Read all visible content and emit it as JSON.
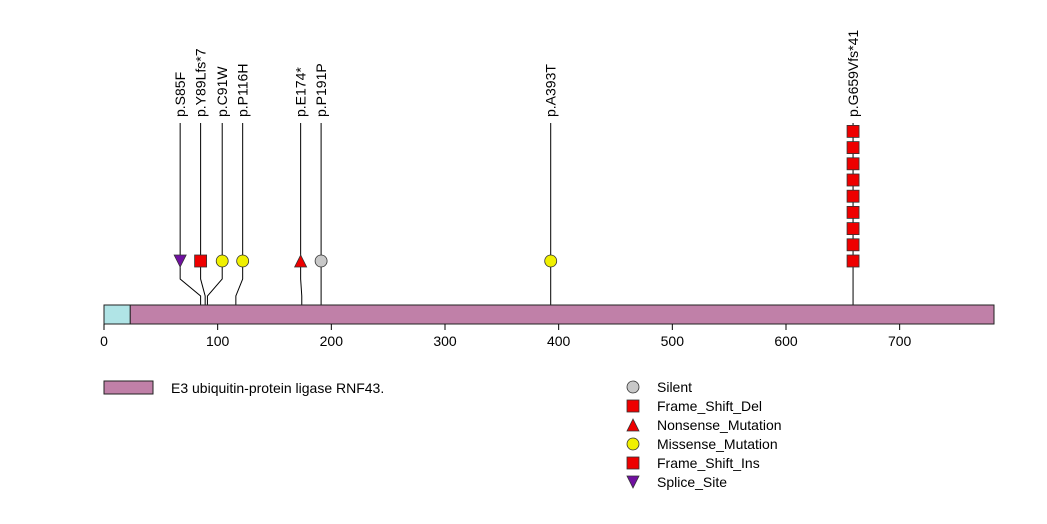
{
  "chart_data": {
    "type": "lollipop",
    "x_axis": {
      "range": [
        0,
        783
      ],
      "ticks": [
        0,
        100,
        200,
        300,
        400,
        500,
        600,
        700
      ],
      "tick_labels": [
        "0",
        "100",
        "200",
        "300",
        "400",
        "500",
        "600",
        "700"
      ]
    },
    "protein": {
      "length": 783,
      "domains": [
        {
          "name": "E3 ubiquitin-protein ligase RNF43.",
          "start": 23,
          "end": 783,
          "color": "#c080a8"
        },
        {
          "name": "",
          "start": 0,
          "end": 23,
          "color": "#b0e4e6"
        }
      ]
    },
    "mutations": [
      {
        "label": "p.S85F",
        "position": 85,
        "marker_position": 67,
        "type": "Splice_Site",
        "count": 1
      },
      {
        "label": "p.Y89Lfs*7",
        "position": 89,
        "marker_position": 85,
        "type": "Frame_Shift_Del",
        "count": 1
      },
      {
        "label": "p.C91W",
        "position": 91,
        "marker_position": 104,
        "type": "Missense_Mutation",
        "count": 1
      },
      {
        "label": "p.P116H",
        "position": 116,
        "marker_position": 122,
        "type": "Missense_Mutation",
        "count": 1
      },
      {
        "label": "p.E174*",
        "position": 174,
        "marker_position": 173,
        "type": "Nonsense_Mutation",
        "count": 1
      },
      {
        "label": "p.P191P",
        "position": 191,
        "marker_position": 191,
        "type": "Silent",
        "count": 1
      },
      {
        "label": "p.A393T",
        "position": 393,
        "marker_position": 393,
        "type": "Missense_Mutation",
        "count": 1
      },
      {
        "label": "p.G659Vfs*41",
        "position": 659,
        "marker_position": 659,
        "type": "Frame_Shift_Del",
        "count": 9
      }
    ],
    "legend": {
      "domain_entry": "E3 ubiquitin-protein ligase RNF43.",
      "mutation_types": [
        {
          "name": "Silent",
          "shape": "circle",
          "color": "#c8c8c8"
        },
        {
          "name": "Frame_Shift_Del",
          "shape": "square",
          "color": "#ee0000"
        },
        {
          "name": "Nonsense_Mutation",
          "shape": "triangle-up",
          "color": "#ee0000"
        },
        {
          "name": "Missense_Mutation",
          "shape": "circle",
          "color": "#f0f000"
        },
        {
          "name": "Frame_Shift_Ins",
          "shape": "square",
          "color": "#ee0000"
        },
        {
          "name": "Splice_Site",
          "shape": "triangle-down",
          "color": "#7010a0"
        }
      ]
    }
  }
}
